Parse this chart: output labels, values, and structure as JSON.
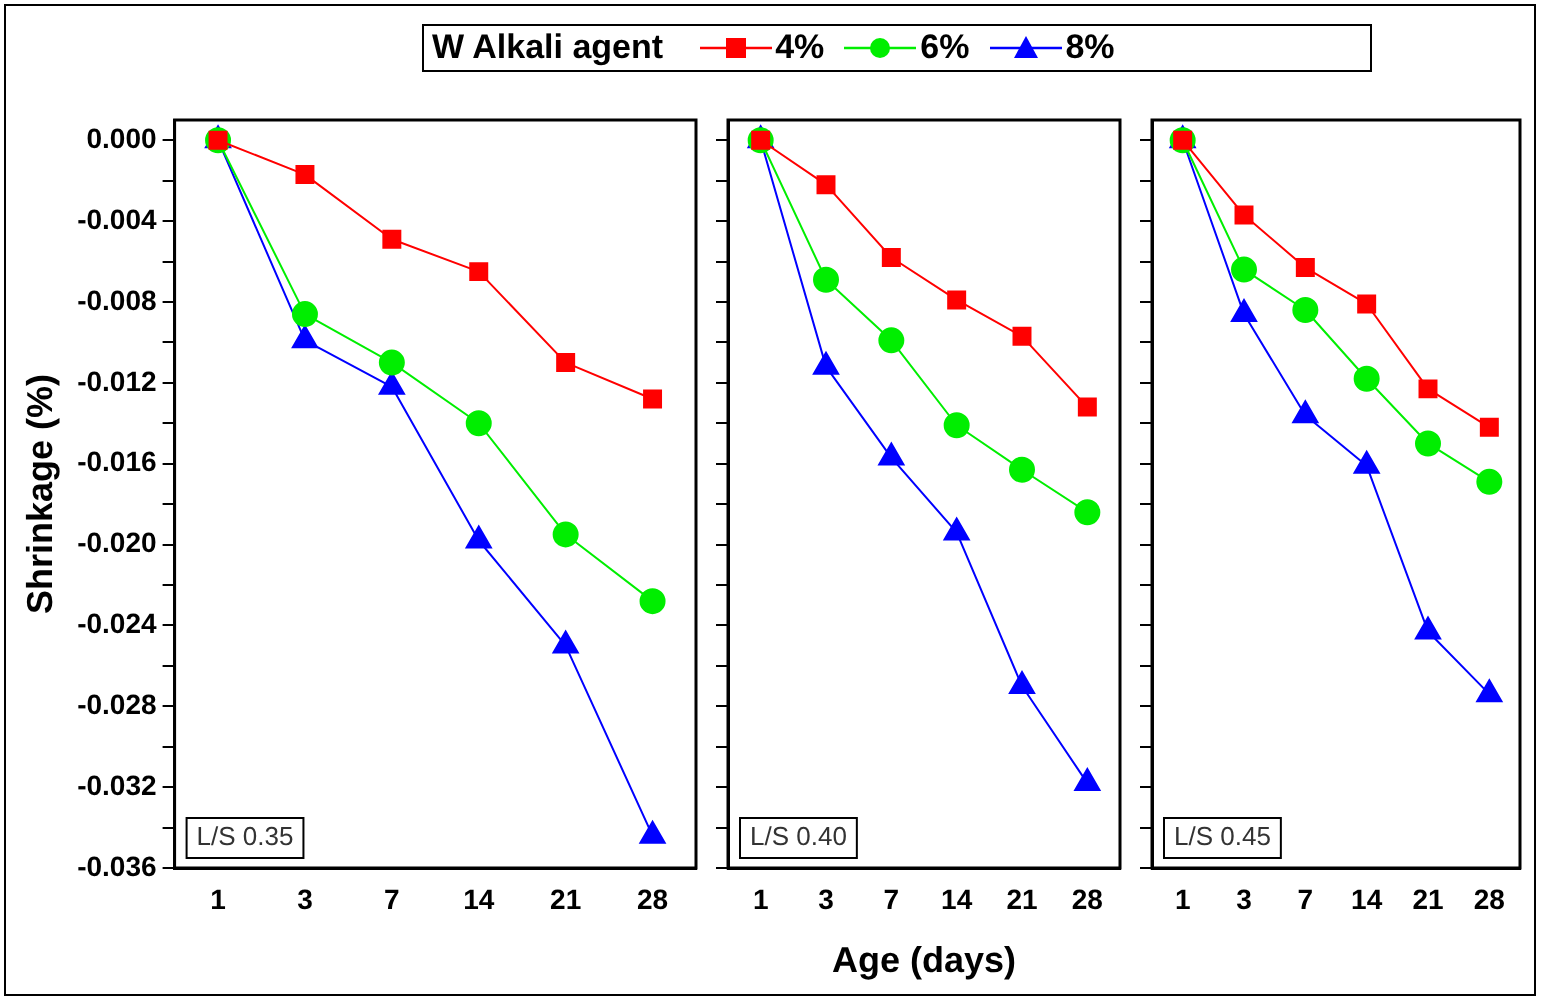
{
  "chart_data": [
    {
      "type": "line",
      "ylabel": "Shrinkage (%)",
      "categories": [
        "1",
        "3",
        "7",
        "14",
        "21",
        "28"
      ],
      "ylim": [
        -0.036,
        0.001
      ],
      "yticks": [
        {
          "value": 0,
          "label": "0.000"
        },
        {
          "value": -0.002,
          "label": null
        },
        {
          "value": -0.004,
          "label": "-0.004"
        },
        {
          "value": -0.006,
          "label": null
        },
        {
          "value": -0.008,
          "label": "-0.008"
        },
        {
          "value": -0.01,
          "label": null
        },
        {
          "value": -0.012,
          "label": "-0.012"
        },
        {
          "value": -0.014,
          "label": null
        },
        {
          "value": -0.016,
          "label": "-0.016"
        },
        {
          "value": -0.018,
          "label": null
        },
        {
          "value": -0.02,
          "label": "-0.020"
        },
        {
          "value": -0.022,
          "label": null
        },
        {
          "value": -0.024,
          "label": "-0.024"
        },
        {
          "value": -0.026,
          "label": null
        },
        {
          "value": -0.028,
          "label": "-0.028"
        },
        {
          "value": -0.03,
          "label": null
        },
        {
          "value": -0.032,
          "label": "-0.032"
        },
        {
          "value": -0.034,
          "label": null
        },
        {
          "value": -0.036,
          "label": "-0.036"
        }
      ],
      "grid": false,
      "annotations": [
        "L/S 0.35"
      ],
      "series": [
        {
          "color": "#ff0000",
          "marker": "square",
          "values": [
            0,
            -0.0017,
            -0.0049,
            -0.0065,
            -0.011,
            -0.0128
          ]
        },
        {
          "color": "#00ee00",
          "marker": "circle",
          "values": [
            0,
            -0.0086,
            -0.011,
            -0.014,
            -0.0195,
            -0.0228
          ]
        },
        {
          "color": "#0000ff",
          "marker": "triangle",
          "values": [
            0,
            -0.0099,
            -0.0122,
            -0.0198,
            -0.025,
            -0.0344
          ]
        }
      ]
    },
    {
      "type": "line",
      "xlabel": "Age (days)",
      "legend_title": "W Alkali agent",
      "legend": "top",
      "tick_labels": "x",
      "categories": [
        "1",
        "3",
        "7",
        "14",
        "21",
        "28"
      ],
      "ylim": [
        -0.036,
        0.001
      ],
      "yticks": [
        {
          "value": 0,
          "label": null
        },
        {
          "value": -0.002,
          "label": null
        },
        {
          "value": -0.004,
          "label": null
        },
        {
          "value": -0.006,
          "label": null
        },
        {
          "value": -0.008,
          "label": null
        },
        {
          "value": -0.01,
          "label": null
        },
        {
          "value": -0.012,
          "label": null
        },
        {
          "value": -0.014,
          "label": null
        },
        {
          "value": -0.016,
          "label": null
        },
        {
          "value": -0.018,
          "label": null
        },
        {
          "value": -0.02,
          "label": null
        },
        {
          "value": -0.022,
          "label": null
        },
        {
          "value": -0.024,
          "label": null
        },
        {
          "value": -0.026,
          "label": null
        },
        {
          "value": -0.028,
          "label": null
        },
        {
          "value": -0.03,
          "label": null
        },
        {
          "value": -0.032,
          "label": null
        },
        {
          "value": -0.034,
          "label": null
        },
        {
          "value": -0.036,
          "label": null
        }
      ],
      "grid": false,
      "annotations": [
        "L/S 0.40"
      ],
      "series": [
        {
          "name": "4%",
          "color": "#ff0000",
          "marker": "square",
          "values": [
            0,
            -0.0022,
            -0.0058,
            -0.0079,
            -0.0097,
            -0.0132
          ]
        },
        {
          "name": "6%",
          "color": "#00ee00",
          "marker": "circle",
          "values": [
            0,
            -0.0069,
            -0.0099,
            -0.0141,
            -0.0163,
            -0.0184
          ]
        },
        {
          "name": "8%",
          "color": "#0000ff",
          "marker": "triangle",
          "values": [
            0,
            -0.0112,
            -0.0157,
            -0.0194,
            -0.027,
            -0.0318
          ]
        }
      ]
    },
    {
      "type": "line",
      "tick_labels": "x",
      "categories": [
        "1",
        "3",
        "7",
        "14",
        "21",
        "28"
      ],
      "ylim": [
        -0.036,
        0.001
      ],
      "yticks": [
        {
          "value": 0,
          "label": null
        },
        {
          "value": -0.002,
          "label": null
        },
        {
          "value": -0.004,
          "label": null
        },
        {
          "value": -0.006,
          "label": null
        },
        {
          "value": -0.008,
          "label": null
        },
        {
          "value": -0.01,
          "label": null
        },
        {
          "value": -0.012,
          "label": null
        },
        {
          "value": -0.014,
          "label": null
        },
        {
          "value": -0.016,
          "label": null
        },
        {
          "value": -0.018,
          "label": null
        },
        {
          "value": -0.02,
          "label": null
        },
        {
          "value": -0.022,
          "label": null
        },
        {
          "value": -0.024,
          "label": null
        },
        {
          "value": -0.026,
          "label": null
        },
        {
          "value": -0.028,
          "label": null
        },
        {
          "value": -0.03,
          "label": null
        },
        {
          "value": -0.032,
          "label": null
        },
        {
          "value": -0.034,
          "label": null
        },
        {
          "value": -0.036,
          "label": null
        }
      ],
      "grid": false,
      "annotations": [
        "L/S 0.45"
      ],
      "series": [
        {
          "color": "#ff0000",
          "marker": "square",
          "values": [
            0,
            -0.0037,
            -0.0063,
            -0.0081,
            -0.0123,
            -0.0142
          ]
        },
        {
          "color": "#00ee00",
          "marker": "circle",
          "values": [
            0,
            -0.0064,
            -0.0084,
            -0.0118,
            -0.015,
            -0.0169
          ]
        },
        {
          "color": "#0000ff",
          "marker": "triangle",
          "values": [
            0,
            -0.0086,
            -0.0136,
            -0.0161,
            -0.0243,
            -0.0274
          ]
        }
      ]
    }
  ]
}
